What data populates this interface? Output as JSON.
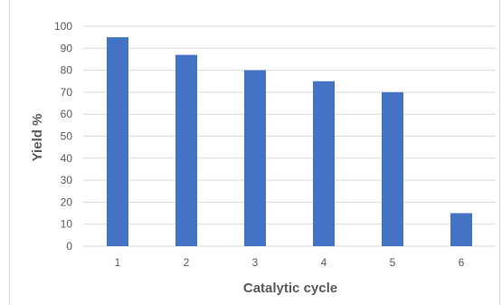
{
  "chart_data": {
    "type": "bar",
    "title": "",
    "xlabel": "Catalytic cycle",
    "ylabel": "Yield %",
    "categories": [
      "1",
      "2",
      "3",
      "4",
      "5",
      "6"
    ],
    "values": [
      95,
      87,
      80,
      75,
      70,
      15
    ],
    "ylim": [
      0,
      100
    ],
    "yticks": [
      "0",
      "10",
      "20",
      "30",
      "40",
      "50",
      "60",
      "70",
      "80",
      "90",
      "100"
    ],
    "grid": "horizontal",
    "legend": "none",
    "bar_color": "#4472c4",
    "grid_color": "#d9d9d9",
    "text_color": "#595959"
  }
}
